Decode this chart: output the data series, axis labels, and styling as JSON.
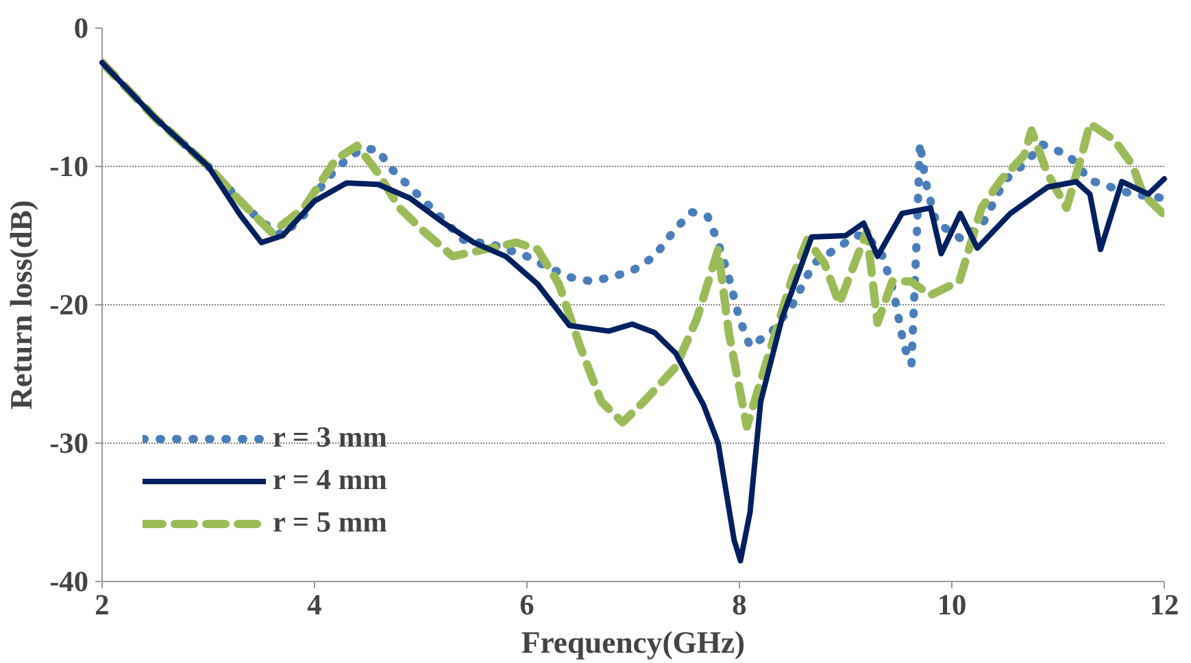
{
  "chart_data": {
    "type": "line",
    "xlabel": "Frequency(GHz)",
    "ylabel": "Return loss(dB)",
    "xlim": [
      2,
      12
    ],
    "ylim": [
      -40,
      0
    ],
    "xticks": [
      2,
      4,
      6,
      8,
      10,
      12
    ],
    "yticks": [
      -40,
      -30,
      -20,
      -10,
      0
    ],
    "grid": "y",
    "legend": "bottom left",
    "series": [
      {
        "name": "r = 3 mm",
        "color": "#4a7ebb",
        "line_style": "dotted",
        "x": [
          2,
          2.5,
          3,
          3.3,
          3.5,
          3.7,
          3.9,
          4.1,
          4.3,
          4.45,
          4.6,
          4.7,
          4.9,
          5.1,
          5.4,
          5.7,
          6.0,
          6.2,
          6.4,
          6.6,
          6.8,
          7.0,
          7.2,
          7.4,
          7.55,
          7.7,
          7.8,
          7.9,
          8.0,
          8.1,
          8.3,
          8.5,
          8.7,
          8.9,
          9.1,
          9.2,
          9.35,
          9.45,
          9.55,
          9.62,
          9.67,
          9.7,
          9.75,
          9.85,
          10.1,
          10.3,
          10.5,
          10.7,
          10.85,
          11.1,
          11.3,
          11.5,
          11.7,
          12
        ],
        "values": [
          -2.5,
          -6.5,
          -10,
          -12.5,
          -14,
          -15,
          -13.5,
          -11,
          -9.5,
          -8.7,
          -8.8,
          -10,
          -11.5,
          -13,
          -15.3,
          -15.7,
          -16.5,
          -17.3,
          -18,
          -18.3,
          -18,
          -17.5,
          -16.5,
          -14.5,
          -13.3,
          -13.6,
          -15.5,
          -18,
          -21,
          -23,
          -22,
          -20,
          -17,
          -16,
          -15,
          -15,
          -16.5,
          -19,
          -23,
          -24.3,
          -15,
          -8.3,
          -11,
          -14,
          -15.3,
          -14,
          -11,
          -9.7,
          -8.4,
          -9.2,
          -11,
          -11.5,
          -12,
          -12.3
        ]
      },
      {
        "name": "r = 4 mm",
        "color": "#002060",
        "line_style": "solid",
        "x": [
          2,
          2.5,
          3,
          3.3,
          3.5,
          3.7,
          4,
          4.3,
          4.6,
          4.9,
          5.2,
          5.5,
          5.8,
          6.1,
          6.4,
          6.77,
          6.99,
          7.2,
          7.4,
          7.66,
          7.8,
          7.95,
          8.01,
          8.1,
          8.2,
          8.4,
          8.68,
          9.0,
          9.17,
          9.3,
          9.53,
          9.8,
          9.9,
          10.08,
          10.24,
          10.55,
          10.9,
          11.17,
          11.3,
          11.4,
          11.6,
          11.85,
          12
        ],
        "values": [
          -2.5,
          -6.5,
          -10,
          -13.5,
          -15.5,
          -15,
          -12.5,
          -11.2,
          -11.3,
          -12.3,
          -14,
          -15.5,
          -16.5,
          -18.5,
          -21.5,
          -21.9,
          -21.4,
          -22,
          -23.5,
          -27.2,
          -30,
          -37,
          -38.5,
          -35,
          -27,
          -21,
          -15.1,
          -15,
          -14.1,
          -16.5,
          -13.4,
          -13,
          -16.3,
          -13.4,
          -15.9,
          -13.4,
          -11.5,
          -11.1,
          -12,
          -16,
          -11.1,
          -12,
          -10.9
        ]
      },
      {
        "name": "r = 5 mm",
        "color": "#9bbb59",
        "line_style": "dashed",
        "x": [
          2,
          2.5,
          3,
          3.3,
          3.6,
          3.9,
          4.2,
          4.4,
          4.6,
          4.8,
          5.0,
          5.3,
          5.6,
          5.9,
          6.1,
          6.3,
          6.5,
          6.7,
          6.9,
          7.1,
          7.4,
          7.6,
          7.8,
          7.9,
          8.07,
          8.3,
          8.5,
          8.64,
          8.8,
          8.94,
          9.2,
          9.3,
          9.44,
          9.61,
          9.8,
          10.07,
          10.28,
          10.46,
          10.68,
          10.75,
          10.9,
          11.08,
          11.22,
          11.3,
          11.53,
          11.7,
          11.8,
          12
        ],
        "values": [
          -2.5,
          -6.5,
          -10,
          -12.5,
          -14.8,
          -13,
          -9.5,
          -8.5,
          -10.5,
          -13,
          -14.5,
          -16.5,
          -16,
          -15.5,
          -16,
          -18.5,
          -23,
          -27,
          -28.5,
          -27,
          -24.5,
          -21,
          -16,
          -22,
          -28.8,
          -23,
          -18,
          -15.3,
          -17,
          -19.9,
          -14.7,
          -21.3,
          -18.3,
          -18.3,
          -19.3,
          -18.3,
          -13,
          -11,
          -9.2,
          -7.4,
          -10.5,
          -13,
          -9.3,
          -6.9,
          -8.1,
          -9.9,
          -12,
          -13.5
        ]
      }
    ]
  }
}
